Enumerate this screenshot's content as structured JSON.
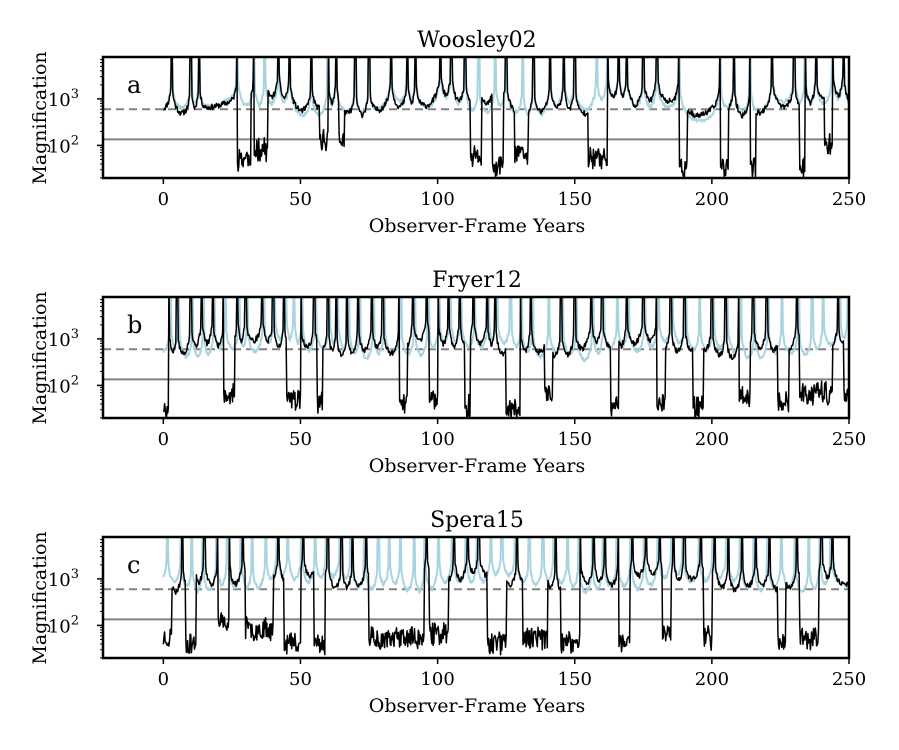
{
  "figure": {
    "type": "multi-panel line chart"
  },
  "chart_data": [
    {
      "type": "line",
      "panel_letter": "a",
      "title": "Woosley02",
      "xlabel": "Observer-Frame Years",
      "ylabel": "Magnification",
      "xlim": [
        -22,
        250
      ],
      "ylim_log10": [
        1.3,
        3.9
      ],
      "yscale": "log",
      "xticks": [
        0,
        50,
        100,
        150,
        200,
        250
      ],
      "xtick_labels": [
        "0",
        "50",
        "100",
        "150",
        "200",
        "250"
      ],
      "ytick_values": [
        100,
        1000
      ],
      "ytick_labels": [
        {
          "base": "10",
          "exp": "2"
        },
        {
          "base": "10",
          "exp": "3"
        }
      ],
      "reference_lines": [
        {
          "style": "dashed",
          "color": "#808080",
          "value": 600
        },
        {
          "style": "solid",
          "color": "#808080",
          "value": 135
        }
      ],
      "spikes": [
        3,
        10,
        13,
        27,
        33,
        37,
        42,
        46,
        54,
        60,
        63,
        70,
        75,
        83,
        89,
        92,
        101,
        105,
        110,
        115,
        121,
        125,
        131,
        135,
        141,
        146,
        150,
        158,
        162,
        166,
        169,
        175,
        180,
        188,
        203,
        208,
        214,
        222,
        230,
        234,
        238,
        244,
        248
      ],
      "drops": [
        [
          27,
          32,
          1.5
        ],
        [
          33,
          38,
          1.7
        ],
        [
          57,
          60,
          1.9
        ],
        [
          64,
          66,
          1.9
        ],
        [
          112,
          116,
          1.5
        ],
        [
          120,
          124,
          1.3
        ],
        [
          128,
          133,
          1.6
        ],
        [
          155,
          162,
          1.5
        ],
        [
          188,
          191,
          1.3
        ],
        [
          203,
          206,
          1.3
        ],
        [
          214,
          216,
          1.3
        ],
        [
          232,
          234,
          1.3
        ],
        [
          241,
          244,
          1.8
        ]
      ],
      "smooth_level": 2.62,
      "series": [
        {
          "name": "black curve",
          "color": "#000000",
          "seed": 11
        },
        {
          "name": "light blue curve",
          "color": "#a8d4e0",
          "seed": 37
        }
      ]
    },
    {
      "type": "line",
      "panel_letter": "b",
      "title": "Fryer12",
      "xlabel": "Observer-Frame Years",
      "ylabel": "Magnification",
      "xlim": [
        -22,
        250
      ],
      "ylim_log10": [
        1.3,
        3.9
      ],
      "yscale": "log",
      "xticks": [
        0,
        50,
        100,
        150,
        200,
        250
      ],
      "xtick_labels": [
        "0",
        "50",
        "100",
        "150",
        "200",
        "250"
      ],
      "ytick_values": [
        100,
        1000
      ],
      "ytick_labels": [
        {
          "base": "10",
          "exp": "2"
        },
        {
          "base": "10",
          "exp": "3"
        }
      ],
      "reference_lines": [
        {
          "style": "dashed",
          "color": "#808080",
          "value": 600
        },
        {
          "style": "solid",
          "color": "#808080",
          "value": 135
        }
      ],
      "spikes": [
        2,
        5,
        10,
        14,
        18,
        22,
        27,
        30,
        36,
        40,
        44,
        47,
        50,
        55,
        60,
        63,
        67,
        71,
        76,
        80,
        86,
        91,
        96,
        100,
        104,
        108,
        113,
        118,
        121,
        126,
        130,
        134,
        140,
        145,
        150,
        156,
        160,
        165,
        169,
        175,
        180,
        185,
        190,
        195,
        200,
        205,
        210,
        215,
        220,
        225,
        231,
        236,
        240,
        246,
        249
      ],
      "drops": [
        [
          0,
          2,
          1.3
        ],
        [
          22,
          26,
          1.6
        ],
        [
          45,
          50,
          1.5
        ],
        [
          56,
          58,
          1.4
        ],
        [
          86,
          89,
          1.4
        ],
        [
          97,
          100,
          1.5
        ],
        [
          110,
          112,
          1.3
        ],
        [
          125,
          130,
          1.3
        ],
        [
          139,
          142,
          1.6
        ],
        [
          163,
          166,
          1.3
        ],
        [
          180,
          183,
          1.4
        ],
        [
          193,
          197,
          1.3
        ],
        [
          210,
          214,
          1.5
        ],
        [
          224,
          228,
          1.4
        ],
        [
          232,
          244,
          1.6
        ],
        [
          248,
          250,
          1.5
        ]
      ],
      "smooth_level": 2.55,
      "series": [
        {
          "name": "black curve",
          "color": "#000000",
          "seed": 5
        },
        {
          "name": "light blue curve",
          "color": "#a8d4e0",
          "seed": 73
        }
      ]
    },
    {
      "type": "line",
      "panel_letter": "c",
      "title": "Spera15",
      "xlabel": "Observer-Frame Years",
      "ylabel": "Magnification",
      "xlim": [
        -22,
        250
      ],
      "ylim_log10": [
        1.3,
        3.9
      ],
      "yscale": "log",
      "xticks": [
        0,
        50,
        100,
        150,
        200,
        250
      ],
      "xtick_labels": [
        "0",
        "50",
        "100",
        "150",
        "200",
        "250"
      ],
      "ytick_values": [
        100,
        1000
      ],
      "ytick_labels": [
        {
          "base": "10",
          "exp": "2"
        },
        {
          "base": "10",
          "exp": "3"
        }
      ],
      "reference_lines": [
        {
          "style": "dashed",
          "color": "#808080",
          "value": 600
        },
        {
          "style": "solid",
          "color": "#808080",
          "value": 135
        }
      ],
      "spikes": [
        2,
        7,
        11,
        15,
        20,
        24,
        29,
        33,
        38,
        42,
        46,
        51,
        56,
        60,
        65,
        69,
        74,
        79,
        83,
        87,
        92,
        96,
        101,
        106,
        111,
        115,
        120,
        124,
        129,
        134,
        139,
        143,
        148,
        152,
        157,
        161,
        166,
        171,
        176,
        181,
        186,
        190,
        196,
        201,
        206,
        211,
        216,
        221,
        226,
        231,
        236,
        240,
        244
      ],
      "drops": [
        [
          0,
          3,
          1.5
        ],
        [
          8,
          12,
          1.4
        ],
        [
          20,
          24,
          1.8
        ],
        [
          30,
          40,
          1.7
        ],
        [
          44,
          50,
          1.4
        ],
        [
          55,
          59,
          1.4
        ],
        [
          75,
          95,
          1.5
        ],
        [
          97,
          104,
          1.6
        ],
        [
          118,
          125,
          1.4
        ],
        [
          131,
          140,
          1.5
        ],
        [
          145,
          152,
          1.4
        ],
        [
          166,
          170,
          1.4
        ],
        [
          182,
          185,
          1.6
        ],
        [
          197,
          200,
          1.5
        ],
        [
          224,
          227,
          1.4
        ],
        [
          232,
          239,
          1.5
        ]
      ],
      "smooth_level": 2.68,
      "series": [
        {
          "name": "black curve",
          "color": "#000000",
          "seed": 23
        },
        {
          "name": "light blue curve",
          "color": "#a8d4e0",
          "seed": 91
        }
      ]
    }
  ]
}
